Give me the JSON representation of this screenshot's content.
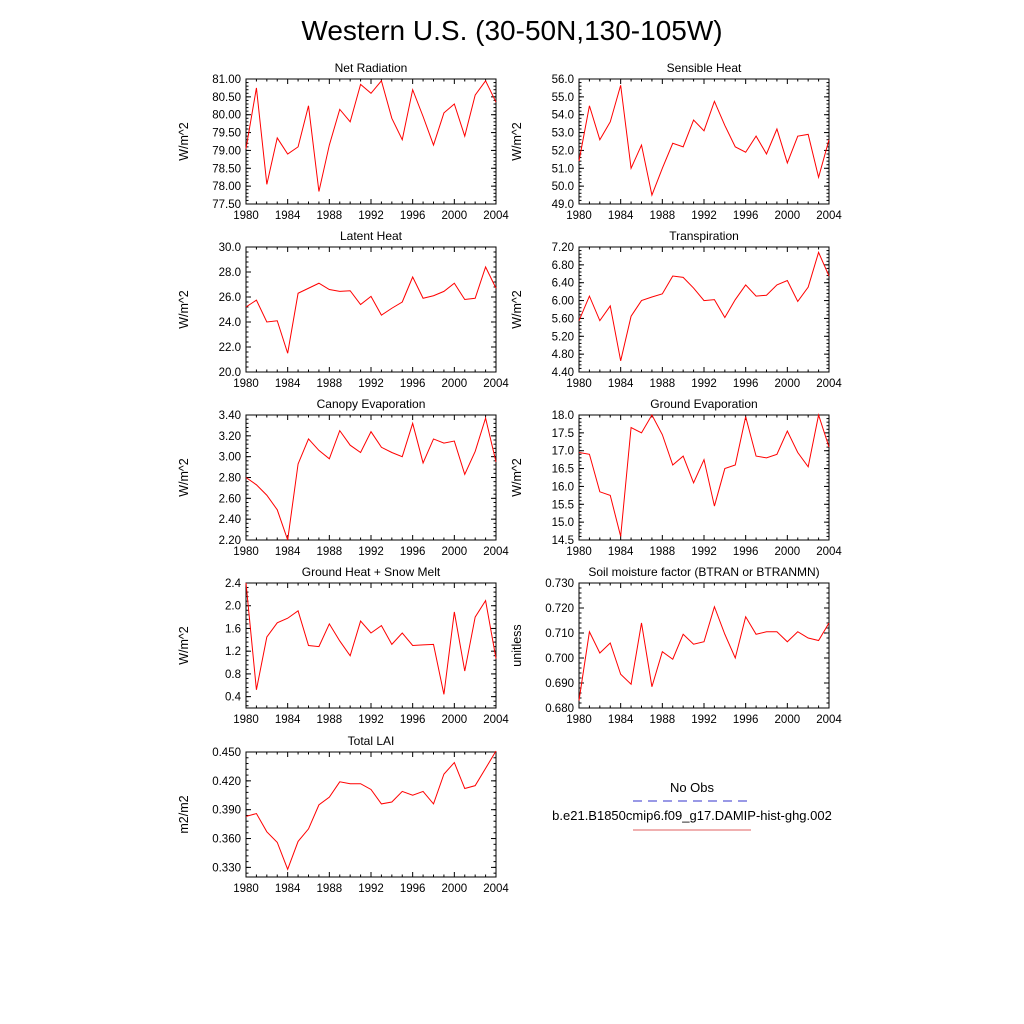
{
  "figure": {
    "title": "Western U.S. (30-50N,130-105W)"
  },
  "legend": {
    "entries": [
      {
        "label": "No Obs",
        "color": "#3333cc",
        "dash": true
      },
      {
        "label": "b.e21.B1850cmip6.f09_g17.DAMIP-hist-ghg.002",
        "color": "#e06060",
        "dash": false
      }
    ]
  },
  "chart_data": [
    {
      "type": "line",
      "title": "Net Radiation",
      "ylabel": "W/m^2",
      "xlim": [
        1980,
        2004
      ],
      "ylim": [
        77.5,
        81.0
      ],
      "xticks": [
        1980,
        1984,
        1988,
        1992,
        1996,
        2000,
        2004
      ],
      "yticks": [
        "77.50",
        "78.00",
        "78.50",
        "79.00",
        "79.50",
        "80.00",
        "80.50",
        "81.00"
      ],
      "series": [
        {
          "color": "#ff0000",
          "x": [
            1980,
            1981,
            1982,
            1983,
            1984,
            1985,
            1986,
            1987,
            1988,
            1989,
            1990,
            1991,
            1992,
            1993,
            1994,
            1995,
            1996,
            1997,
            1998,
            1999,
            2000,
            2001,
            2002,
            2003,
            2004
          ],
          "values": [
            79.05,
            80.75,
            78.05,
            79.35,
            78.9,
            79.1,
            80.25,
            77.85,
            79.15,
            80.15,
            79.8,
            80.85,
            80.6,
            80.95,
            79.9,
            79.3,
            80.7,
            79.95,
            79.15,
            80.05,
            80.3,
            79.4,
            80.55,
            80.95,
            80.35
          ]
        }
      ]
    },
    {
      "type": "line",
      "title": "Sensible Heat",
      "ylabel": "W/m^2",
      "xlim": [
        1980,
        2004
      ],
      "ylim": [
        49.0,
        56.0
      ],
      "xticks": [
        1980,
        1984,
        1988,
        1992,
        1996,
        2000,
        2004
      ],
      "yticks": [
        "49.0",
        "50.0",
        "51.0",
        "52.0",
        "53.0",
        "54.0",
        "55.0",
        "56.0"
      ],
      "series": [
        {
          "color": "#ff0000",
          "x": [
            1980,
            1981,
            1982,
            1983,
            1984,
            1985,
            1986,
            1987,
            1988,
            1989,
            1990,
            1991,
            1992,
            1993,
            1994,
            1995,
            1996,
            1997,
            1998,
            1999,
            2000,
            2001,
            2002,
            2003,
            2004
          ],
          "values": [
            51.4,
            54.5,
            52.6,
            53.6,
            55.65,
            51.0,
            52.3,
            49.5,
            51.0,
            52.4,
            52.2,
            53.7,
            53.1,
            54.75,
            53.4,
            52.2,
            51.9,
            52.8,
            51.8,
            53.2,
            51.3,
            52.8,
            52.9,
            50.5,
            52.6
          ]
        }
      ]
    },
    {
      "type": "line",
      "title": "Latent Heat",
      "ylabel": "W/m^2",
      "xlim": [
        1980,
        2004
      ],
      "ylim": [
        20.0,
        30.0
      ],
      "xticks": [
        1980,
        1984,
        1988,
        1992,
        1996,
        2000,
        2004
      ],
      "yticks": [
        "20.0",
        "22.0",
        "24.0",
        "26.0",
        "28.0",
        "30.0"
      ],
      "series": [
        {
          "color": "#ff0000",
          "x": [
            1980,
            1981,
            1982,
            1983,
            1984,
            1985,
            1986,
            1987,
            1988,
            1989,
            1990,
            1991,
            1992,
            1993,
            1994,
            1995,
            1996,
            1997,
            1998,
            1999,
            2000,
            2001,
            2002,
            2003,
            2004
          ],
          "values": [
            25.2,
            25.75,
            24.0,
            24.1,
            21.5,
            26.3,
            26.7,
            27.1,
            26.6,
            26.45,
            26.5,
            25.4,
            26.05,
            24.55,
            25.1,
            25.6,
            27.6,
            25.9,
            26.1,
            26.45,
            27.1,
            25.8,
            25.9,
            28.4,
            26.7
          ]
        }
      ]
    },
    {
      "type": "line",
      "title": "Transpiration",
      "ylabel": "W/m^2",
      "xlim": [
        1980,
        2004
      ],
      "ylim": [
        4.4,
        7.2
      ],
      "xticks": [
        1980,
        1984,
        1988,
        1992,
        1996,
        2000,
        2004
      ],
      "yticks": [
        "4.40",
        "4.80",
        "5.20",
        "5.60",
        "6.00",
        "6.40",
        "6.80",
        "7.20"
      ],
      "series": [
        {
          "color": "#ff0000",
          "x": [
            1980,
            1981,
            1982,
            1983,
            1984,
            1985,
            1986,
            1987,
            1988,
            1989,
            1990,
            1991,
            1992,
            1993,
            1994,
            1995,
            1996,
            1997,
            1998,
            1999,
            2000,
            2001,
            2002,
            2003,
            2004
          ],
          "values": [
            5.55,
            6.1,
            5.55,
            5.88,
            4.65,
            5.65,
            6.0,
            6.08,
            6.15,
            6.55,
            6.52,
            6.28,
            6.0,
            6.02,
            5.62,
            6.02,
            6.35,
            6.1,
            6.12,
            6.35,
            6.45,
            5.98,
            6.3,
            7.08,
            6.55
          ]
        }
      ]
    },
    {
      "type": "line",
      "title": "Canopy Evaporation",
      "ylabel": "W/m^2",
      "xlim": [
        1980,
        2004
      ],
      "ylim": [
        2.2,
        3.4
      ],
      "xticks": [
        1980,
        1984,
        1988,
        1992,
        1996,
        2000,
        2004
      ],
      "yticks": [
        "2.20",
        "2.40",
        "2.60",
        "2.80",
        "3.00",
        "3.20",
        "3.40"
      ],
      "series": [
        {
          "color": "#ff0000",
          "x": [
            1980,
            1981,
            1982,
            1983,
            1984,
            1985,
            1986,
            1987,
            1988,
            1989,
            1990,
            1991,
            1992,
            1993,
            1994,
            1995,
            1996,
            1997,
            1998,
            1999,
            2000,
            2001,
            2002,
            2003,
            2004
          ],
          "values": [
            2.8,
            2.73,
            2.63,
            2.49,
            2.2,
            2.93,
            3.17,
            3.06,
            2.98,
            3.25,
            3.11,
            3.04,
            3.24,
            3.09,
            3.04,
            3.0,
            3.32,
            2.94,
            3.17,
            3.13,
            3.15,
            2.83,
            3.05,
            3.37,
            2.95
          ]
        }
      ]
    },
    {
      "type": "line",
      "title": "Ground Evaporation",
      "ylabel": "W/m^2",
      "xlim": [
        1980,
        2004
      ],
      "ylim": [
        14.5,
        18.0
      ],
      "xticks": [
        1980,
        1984,
        1988,
        1992,
        1996,
        2000,
        2004
      ],
      "yticks": [
        "14.5",
        "15.0",
        "15.5",
        "16.0",
        "16.5",
        "17.0",
        "17.5",
        "18.0"
      ],
      "series": [
        {
          "color": "#ff0000",
          "x": [
            1980,
            1981,
            1982,
            1983,
            1984,
            1985,
            1986,
            1987,
            1988,
            1989,
            1990,
            1991,
            1992,
            1993,
            1994,
            1995,
            1996,
            1997,
            1998,
            1999,
            2000,
            2001,
            2002,
            2003,
            2004
          ],
          "values": [
            16.95,
            16.9,
            15.85,
            15.75,
            14.6,
            17.65,
            17.5,
            18.0,
            17.45,
            16.6,
            16.85,
            16.1,
            16.75,
            15.45,
            16.5,
            16.6,
            17.95,
            16.85,
            16.8,
            16.9,
            17.55,
            16.95,
            16.55,
            18.0,
            17.1
          ]
        }
      ]
    },
    {
      "type": "line",
      "title": "Ground Heat + Snow Melt",
      "ylabel": "W/m^2",
      "xlim": [
        1980,
        2004
      ],
      "ylim": [
        0.2,
        2.4
      ],
      "xticks": [
        1980,
        1984,
        1988,
        1992,
        1996,
        2000,
        2004
      ],
      "yticks": [
        "0.4",
        "0.8",
        "1.2",
        "1.6",
        "2.0",
        "2.4"
      ],
      "series": [
        {
          "color": "#ff0000",
          "x": [
            1980,
            1981,
            1982,
            1983,
            1984,
            1985,
            1986,
            1987,
            1988,
            1989,
            1990,
            1991,
            1992,
            1993,
            1994,
            1995,
            1996,
            1997,
            1998,
            1999,
            2000,
            2001,
            2002,
            2003,
            2004
          ],
          "values": [
            2.4,
            0.52,
            1.45,
            1.7,
            1.78,
            1.91,
            1.3,
            1.28,
            1.68,
            1.38,
            1.12,
            1.73,
            1.52,
            1.65,
            1.32,
            1.52,
            1.3,
            1.31,
            1.32,
            0.44,
            1.89,
            0.85,
            1.8,
            2.09,
            1.07
          ]
        }
      ]
    },
    {
      "type": "line",
      "title": "Soil moisture factor (BTRAN or BTRANMN)",
      "ylabel": "unitless",
      "xlim": [
        1980,
        2004
      ],
      "ylim": [
        0.68,
        0.73
      ],
      "xticks": [
        1980,
        1984,
        1988,
        1992,
        1996,
        2000,
        2004
      ],
      "yticks": [
        "0.680",
        "0.690",
        "0.700",
        "0.710",
        "0.720",
        "0.730"
      ],
      "series": [
        {
          "color": "#ff0000",
          "x": [
            1980,
            1981,
            1982,
            1983,
            1984,
            1985,
            1986,
            1987,
            1988,
            1989,
            1990,
            1991,
            1992,
            1993,
            1994,
            1995,
            1996,
            1997,
            1998,
            1999,
            2000,
            2001,
            2002,
            2003,
            2004
          ],
          "values": [
            0.683,
            0.7105,
            0.702,
            0.706,
            0.6935,
            0.6895,
            0.714,
            0.6885,
            0.7025,
            0.6995,
            0.7095,
            0.7055,
            0.7065,
            0.7205,
            0.7095,
            0.7,
            0.7165,
            0.7095,
            0.7105,
            0.7105,
            0.7065,
            0.7105,
            0.708,
            0.707,
            0.714
          ]
        }
      ]
    },
    {
      "type": "line",
      "title": "Total LAI",
      "ylabel": "m2/m2",
      "xlim": [
        1980,
        2004
      ],
      "ylim": [
        0.32,
        0.45
      ],
      "xticks": [
        1980,
        1984,
        1988,
        1992,
        1996,
        2000,
        2004
      ],
      "yticks": [
        "0.330",
        "0.360",
        "0.390",
        "0.420",
        "0.450"
      ],
      "series": [
        {
          "color": "#ff0000",
          "x": [
            1980,
            1981,
            1982,
            1983,
            1984,
            1985,
            1986,
            1987,
            1988,
            1989,
            1990,
            1991,
            1992,
            1993,
            1994,
            1995,
            1996,
            1997,
            1998,
            1999,
            2000,
            2001,
            2002,
            2003,
            2004
          ],
          "values": [
            0.383,
            0.386,
            0.367,
            0.356,
            0.328,
            0.357,
            0.37,
            0.395,
            0.403,
            0.419,
            0.417,
            0.417,
            0.411,
            0.396,
            0.398,
            0.409,
            0.405,
            0.409,
            0.396,
            0.427,
            0.439,
            0.412,
            0.415,
            0.433,
            0.451
          ]
        }
      ]
    }
  ]
}
